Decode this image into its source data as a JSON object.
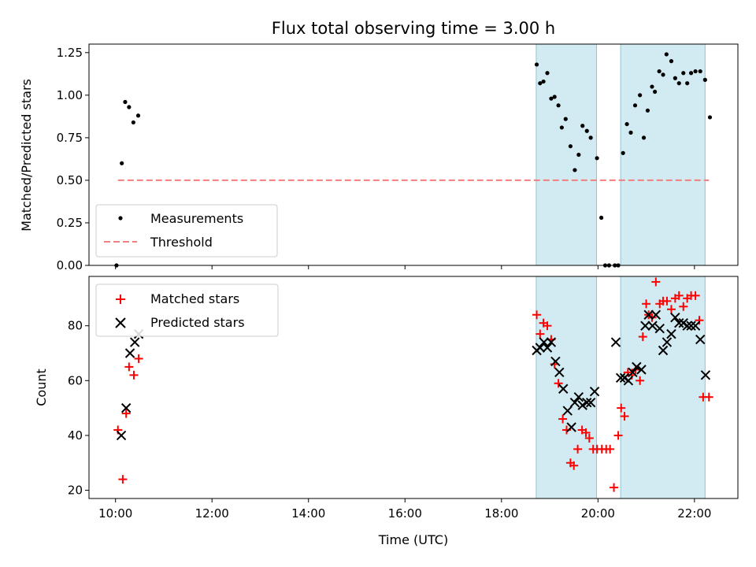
{
  "chart_data": {
    "type": "scatter",
    "title": "Flux total observing time = 3.00 h",
    "xlabel": "Time (UTC)",
    "x_ticks": [
      "10:00",
      "12:00",
      "14:00",
      "16:00",
      "18:00",
      "20:00",
      "22:00"
    ],
    "x_tick_values_hours": [
      10,
      12,
      14,
      16,
      18,
      20,
      22
    ],
    "xlim_hours": [
      9.45,
      22.9
    ],
    "shaded_intervals_hours": [
      [
        18.72,
        19.97
      ],
      [
        20.47,
        22.22
      ]
    ],
    "colors": {
      "measurements": "#000000",
      "threshold": "#f08080",
      "matched": "#ff0000",
      "predicted": "#000000",
      "shade": "#add8e6"
    },
    "panels": [
      {
        "ylabel": "Matched/Predicted stars",
        "ylim": [
          0,
          1.3
        ],
        "y_ticks": [
          "0.00",
          "0.25",
          "0.50",
          "0.75",
          "1.00",
          "1.25"
        ],
        "y_tick_values": [
          0,
          0.25,
          0.5,
          0.75,
          1.0,
          1.25
        ],
        "legend": {
          "placement": "lower left",
          "entries": [
            "Measurements",
            "Threshold"
          ]
        },
        "threshold": {
          "name": "Threshold",
          "value": 0.5,
          "x_range_hours": [
            10.05,
            22.3
          ]
        },
        "series": [
          {
            "name": "Measurements",
            "marker": "dot",
            "x_hours": [
              10.02,
              10.13,
              10.2,
              10.28,
              10.37,
              10.47,
              18.73,
              18.8,
              18.87,
              18.95,
              19.03,
              19.1,
              19.18,
              19.25,
              19.33,
              19.43,
              19.52,
              19.6,
              19.68,
              19.77,
              19.85,
              19.98,
              20.07,
              20.15,
              20.23,
              20.35,
              20.42,
              20.52,
              20.6,
              20.68,
              20.77,
              20.87,
              20.95,
              21.03,
              21.12,
              21.18,
              21.27,
              21.35,
              21.42,
              21.52,
              21.6,
              21.68,
              21.77,
              21.85,
              21.93,
              22.02,
              22.12,
              22.22,
              22.32
            ],
            "values": [
              0.0,
              0.6,
              0.96,
              0.93,
              0.84,
              0.88,
              1.18,
              1.07,
              1.08,
              1.13,
              0.98,
              0.99,
              0.94,
              0.81,
              0.86,
              0.7,
              0.56,
              0.65,
              0.82,
              0.79,
              0.75,
              0.63,
              0.28,
              0.0,
              0.0,
              0.0,
              0.0,
              0.66,
              0.83,
              0.78,
              0.94,
              1.0,
              0.75,
              0.91,
              1.05,
              1.02,
              1.14,
              1.12,
              1.24,
              1.2,
              1.1,
              1.07,
              1.13,
              1.07,
              1.13,
              1.14,
              1.14,
              1.09,
              0.87
            ]
          }
        ]
      },
      {
        "ylabel": "Count",
        "ylim": [
          17,
          98
        ],
        "y_ticks": [
          "20",
          "40",
          "60",
          "80"
        ],
        "y_tick_values": [
          20,
          40,
          60,
          80
        ],
        "legend": {
          "placement": "upper left",
          "entries": [
            "Matched stars",
            "Predicted stars"
          ]
        },
        "series": [
          {
            "name": "Matched stars",
            "marker": "plus",
            "x_hours": [
              10.05,
              10.15,
              10.22,
              10.28,
              10.38,
              10.48,
              18.73,
              18.8,
              18.87,
              18.95,
              19.03,
              19.1,
              19.18,
              19.27,
              19.35,
              19.43,
              19.5,
              19.58,
              19.67,
              19.75,
              19.82,
              19.9,
              19.98,
              20.08,
              20.17,
              20.25,
              20.33,
              20.42,
              20.48,
              20.55,
              20.62,
              20.7,
              20.78,
              20.87,
              20.93,
              21.0,
              21.05,
              21.12,
              21.2,
              21.28,
              21.35,
              21.43,
              21.52,
              21.6,
              21.68,
              21.77,
              21.85,
              21.93,
              22.02,
              22.1,
              22.18,
              22.3
            ],
            "values": [
              42,
              24,
              48,
              65,
              62,
              68,
              84,
              77,
              81,
              80,
              75,
              66,
              59,
              46,
              42,
              30,
              29,
              35,
              42,
              41,
              39,
              35,
              35,
              35,
              35,
              35,
              21,
              40,
              50,
              47,
              63,
              62,
              64,
              60,
              76,
              88,
              84,
              83,
              96,
              88,
              89,
              89,
              86,
              90,
              91,
              87,
              90,
              91,
              91,
              82,
              54,
              54
            ]
          },
          {
            "name": "Predicted stars",
            "marker": "x",
            "x_hours": [
              10.12,
              10.22,
              10.3,
              10.4,
              10.48,
              18.73,
              18.8,
              18.88,
              18.95,
              19.03,
              19.12,
              19.2,
              19.28,
              19.37,
              19.45,
              19.52,
              19.6,
              19.68,
              19.77,
              19.85,
              19.93,
              20.37,
              20.47,
              20.55,
              20.63,
              20.72,
              20.8,
              20.9,
              20.98,
              21.05,
              21.13,
              21.2,
              21.28,
              21.35,
              21.43,
              21.52,
              21.6,
              21.68,
              21.77,
              21.85,
              21.93,
              22.02,
              22.12,
              22.23
            ],
            "values": [
              40,
              50,
              70,
              74,
              77,
              71,
              72,
              74,
              72,
              74,
              67,
              63,
              57,
              49,
              43,
              52,
              54,
              51,
              52,
              52,
              56,
              74,
              61,
              61,
              60,
              63,
              65,
              64,
              80,
              84,
              80,
              84,
              79,
              71,
              74,
              77,
              83,
              81,
              81,
              80,
              80,
              80,
              75,
              62
            ]
          }
        ]
      }
    ]
  }
}
